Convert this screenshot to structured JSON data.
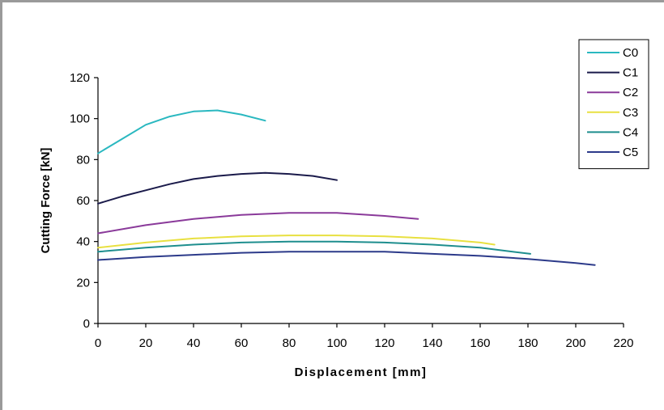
{
  "chart_data": {
    "type": "line",
    "title": "",
    "xlabel": "Displacement [mm]",
    "ylabel": "Cutting Force [kN]",
    "xlim": [
      0,
      220
    ],
    "ylim": [
      0,
      120
    ],
    "xticks": [
      0,
      20,
      40,
      60,
      80,
      100,
      120,
      140,
      160,
      180,
      200,
      220
    ],
    "yticks": [
      0,
      20,
      40,
      60,
      80,
      100,
      120
    ],
    "grid": false,
    "legend": "top-right",
    "series": [
      {
        "name": "C0",
        "color": "#2ab8c0",
        "x": [
          0,
          10,
          20,
          30,
          40,
          50,
          60,
          70
        ],
        "y": [
          83,
          90,
          97,
          101,
          103.5,
          104,
          102,
          99
        ]
      },
      {
        "name": "C1",
        "color": "#1a1a4a",
        "x": [
          0,
          10,
          20,
          30,
          40,
          50,
          60,
          70,
          80,
          90,
          100
        ],
        "y": [
          58.5,
          62,
          65,
          68,
          70.5,
          72,
          73,
          73.5,
          73,
          72,
          70
        ]
      },
      {
        "name": "C2",
        "color": "#8a3a9a",
        "x": [
          0,
          20,
          40,
          60,
          80,
          100,
          120,
          134
        ],
        "y": [
          44,
          48,
          51,
          53,
          54,
          54,
          52.5,
          51
        ]
      },
      {
        "name": "C3",
        "color": "#e8e040",
        "x": [
          0,
          20,
          40,
          60,
          80,
          100,
          120,
          140,
          160,
          166
        ],
        "y": [
          37,
          39.5,
          41.5,
          42.5,
          43,
          43,
          42.5,
          41.5,
          39.5,
          38.5
        ]
      },
      {
        "name": "C4",
        "color": "#1e8e8e",
        "x": [
          0,
          20,
          40,
          60,
          80,
          100,
          120,
          140,
          160,
          181
        ],
        "y": [
          35,
          37,
          38.5,
          39.5,
          40,
          40,
          39.5,
          38.5,
          37,
          34
        ]
      },
      {
        "name": "C5",
        "color": "#2c3a8a",
        "x": [
          0,
          20,
          40,
          60,
          80,
          100,
          120,
          140,
          160,
          180,
          200,
          208
        ],
        "y": [
          31,
          32.5,
          33.5,
          34.5,
          35,
          35,
          35,
          34,
          33,
          31.5,
          29.5,
          28.5
        ]
      }
    ]
  }
}
